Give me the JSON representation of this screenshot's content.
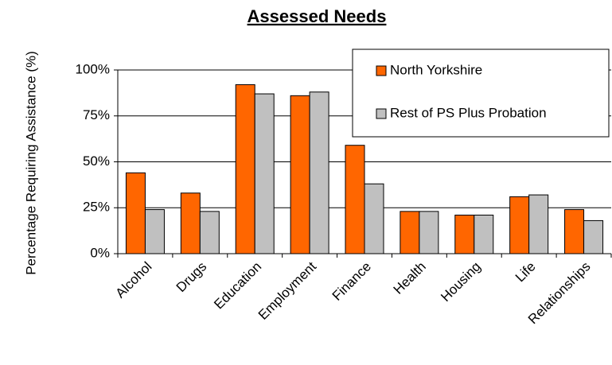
{
  "chart_data": {
    "type": "bar",
    "title": "Assessed Needs",
    "y_label": "Percentage Requiring Assistance (%)",
    "categories": [
      "Alcohol",
      "Drugs",
      "Education",
      "Employment",
      "Finance",
      "Health",
      "Housing",
      "Life",
      "Relationships"
    ],
    "series": [
      {
        "name": "North Yorkshire",
        "color": "#ff6600",
        "values": [
          44,
          33,
          92,
          86,
          59,
          23,
          21,
          31,
          24
        ]
      },
      {
        "name": "Rest of PS Plus Probation",
        "color": "#c0c0c0",
        "values": [
          24,
          23,
          87,
          88,
          38,
          23,
          21,
          32,
          18
        ]
      }
    ],
    "ylim": [
      0,
      100
    ],
    "yticks": [
      {
        "value": 0,
        "label": "0%"
      },
      {
        "value": 25,
        "label": "25%"
      },
      {
        "value": 50,
        "label": "50%"
      },
      {
        "value": 75,
        "label": "75%"
      },
      {
        "value": 100,
        "label": "100%"
      }
    ],
    "grid": true,
    "legend": "upper right"
  }
}
